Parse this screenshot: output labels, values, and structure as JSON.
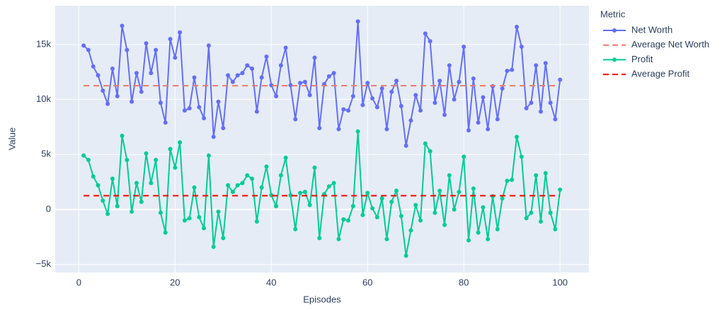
{
  "chart_data": {
    "type": "line",
    "x_label": "Episodes",
    "y_label": "Value",
    "legend_title": "Metric",
    "legend": "right",
    "x": [
      1,
      2,
      3,
      4,
      5,
      6,
      7,
      8,
      9,
      10,
      11,
      12,
      13,
      14,
      15,
      16,
      17,
      18,
      19,
      20,
      21,
      22,
      23,
      24,
      25,
      26,
      27,
      28,
      29,
      30,
      31,
      32,
      33,
      34,
      35,
      36,
      37,
      38,
      39,
      40,
      41,
      42,
      43,
      44,
      45,
      46,
      47,
      48,
      49,
      50,
      51,
      52,
      53,
      54,
      55,
      56,
      57,
      58,
      59,
      60,
      61,
      62,
      63,
      64,
      65,
      66,
      67,
      68,
      69,
      70,
      71,
      72,
      73,
      74,
      75,
      76,
      77,
      78,
      79,
      80,
      81,
      82,
      83,
      84,
      85,
      86,
      87,
      88,
      89,
      90,
      91,
      92,
      93,
      94,
      95,
      96,
      97,
      98,
      99,
      100
    ],
    "series": [
      {
        "name": "Net Worth",
        "color": "#636efa",
        "dash": false,
        "markers": true,
        "values": [
          14900,
          14500,
          13000,
          12200,
          10800,
          9600,
          12800,
          10300,
          16700,
          14500,
          9800,
          12400,
          10700,
          15100,
          12400,
          14500,
          9700,
          7900,
          15500,
          13800,
          16100,
          9000,
          9200,
          12000,
          9300,
          8300,
          14900,
          6600,
          9800,
          7400,
          12200,
          11600,
          12200,
          12400,
          13100,
          12800,
          8900,
          12000,
          13900,
          11300,
          10300,
          13100,
          14700,
          11300,
          8200,
          11500,
          11600,
          10400,
          13800,
          7400,
          11400,
          12100,
          12400,
          7300,
          9100,
          9000,
          10300,
          17100,
          9500,
          11500,
          10100,
          9300,
          11000,
          7300,
          10700,
          11700,
          9400,
          5800,
          8100,
          10400,
          9000,
          16000,
          15300,
          9700,
          11700,
          8600,
          13100,
          10000,
          11600,
          14800,
          7200,
          11900,
          7900,
          10200,
          7300,
          11200,
          8200,
          11000,
          12600,
          12700,
          16600,
          14800,
          9200,
          9700,
          13100,
          8900,
          13300,
          9700,
          8200,
          11800
        ]
      },
      {
        "name": "Average Net Worth",
        "color": "#ef7a66",
        "dash": true,
        "markers": false,
        "x": [
          1,
          100
        ],
        "values": [
          11250,
          11250
        ]
      },
      {
        "name": "Profit",
        "color": "#00cc96",
        "dash": false,
        "markers": true,
        "values": [
          4900,
          4500,
          3000,
          2200,
          800,
          -400,
          2800,
          300,
          6700,
          4500,
          -200,
          2400,
          700,
          5100,
          2400,
          4500,
          -300,
          -2100,
          5500,
          3800,
          6100,
          -1000,
          -800,
          2000,
          -700,
          -1700,
          4900,
          -3400,
          -200,
          -2600,
          2200,
          1600,
          2200,
          2400,
          3100,
          2800,
          -1100,
          2000,
          3900,
          1300,
          300,
          3100,
          4700,
          1300,
          -1800,
          1500,
          1600,
          400,
          3800,
          -2600,
          1400,
          2100,
          2400,
          -2700,
          -900,
          -1000,
          300,
          7100,
          -500,
          1500,
          100,
          -700,
          1000,
          -2700,
          700,
          1700,
          -600,
          -4200,
          -1900,
          400,
          -1000,
          6000,
          5300,
          -300,
          1700,
          -1400,
          3100,
          0,
          1600,
          4800,
          -2800,
          1900,
          -2100,
          200,
          -2700,
          1200,
          -1800,
          1000,
          2600,
          2700,
          6600,
          4800,
          -800,
          -300,
          3100,
          -1100,
          3300,
          -300,
          -1800,
          1800
        ]
      },
      {
        "name": "Average Profit",
        "color": "#ff0000",
        "dash": true,
        "markers": false,
        "x": [
          1,
          100
        ],
        "values": [
          1250,
          1250
        ]
      }
    ],
    "xlim": [
      -4.9,
      106
    ],
    "xticks": [
      0,
      20,
      40,
      60,
      80,
      100
    ],
    "ylim": [
      -5730,
      18530
    ],
    "yticks": [
      {
        "value": -5000,
        "label": "−5k"
      },
      0,
      {
        "value": 5000,
        "label": "5k"
      },
      {
        "value": 10000,
        "label": "10k"
      },
      {
        "value": 15000,
        "label": "15k"
      }
    ],
    "grid": true
  }
}
